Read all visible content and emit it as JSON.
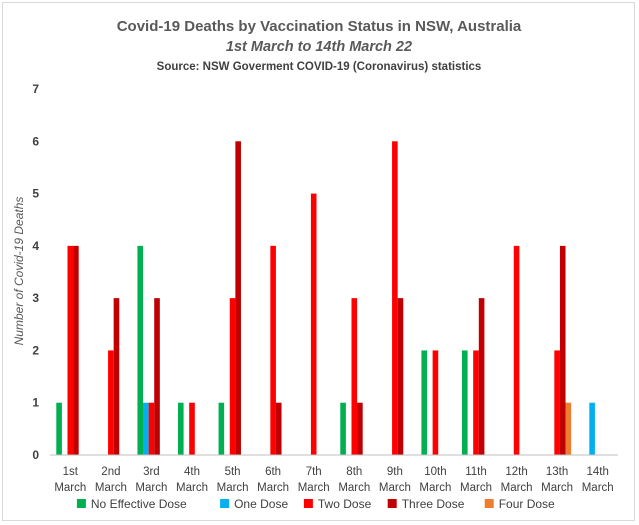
{
  "chart_data": {
    "type": "bar",
    "title": "Covid-19 Deaths by Vaccination Status in NSW, Australia",
    "subtitle": "1st March to 14th March 22",
    "source": "Source: NSW Goverment COVID-19 (Coronavirus) statistics",
    "xlabel": "",
    "ylabel": "Number of Covid-19 Deaths",
    "ylim": [
      0,
      7
    ],
    "yticks": [
      "0",
      "1",
      "2",
      "3",
      "4",
      "5",
      "6",
      "7"
    ],
    "categories": [
      {
        "top": "1st",
        "bottom": "March"
      },
      {
        "top": "2nd",
        "bottom": "March"
      },
      {
        "top": "3rd",
        "bottom": "March"
      },
      {
        "top": "4th",
        "bottom": "March"
      },
      {
        "top": "5th",
        "bottom": "March"
      },
      {
        "top": "6th",
        "bottom": "March"
      },
      {
        "top": "7th",
        "bottom": "March"
      },
      {
        "top": "8th",
        "bottom": "March"
      },
      {
        "top": "9th",
        "bottom": "March"
      },
      {
        "top": "10th",
        "bottom": "March"
      },
      {
        "top": "11th",
        "bottom": "March"
      },
      {
        "top": "12th",
        "bottom": "March"
      },
      {
        "top": "13th",
        "bottom": "March"
      },
      {
        "top": "14th",
        "bottom": "March"
      }
    ],
    "series": [
      {
        "name": "No Effective Dose",
        "color": "#00b050",
        "values": [
          1,
          0,
          4,
          1,
          1,
          0,
          0,
          1,
          0,
          2,
          2,
          0,
          0,
          0
        ]
      },
      {
        "name": "One Dose",
        "color": "#00b0f0",
        "values": [
          0,
          0,
          1,
          0,
          0,
          0,
          0,
          0,
          0,
          0,
          0,
          0,
          0,
          1
        ]
      },
      {
        "name": "Two Dose",
        "color": "#ff0000",
        "values": [
          4,
          2,
          1,
          1,
          3,
          4,
          5,
          3,
          6,
          2,
          2,
          4,
          2,
          0
        ]
      },
      {
        "name": "Three Dose",
        "color": "#c00000",
        "values": [
          4,
          3,
          3,
          0,
          6,
          1,
          0,
          1,
          3,
          0,
          3,
          0,
          4,
          0
        ]
      },
      {
        "name": "Four Dose",
        "color": "#ed7d31",
        "values": [
          0,
          0,
          0,
          0,
          0,
          0,
          0,
          0,
          0,
          0,
          0,
          0,
          1,
          0
        ]
      }
    ],
    "legend_position": "bottom",
    "grid": false
  }
}
